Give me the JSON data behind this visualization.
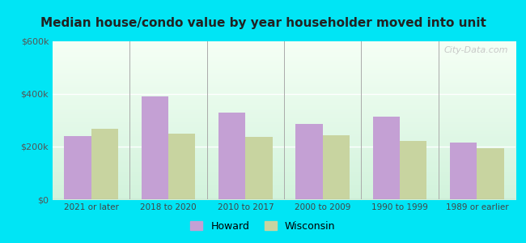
{
  "title": "Median house/condo value by year householder moved into unit",
  "categories": [
    "2021 or later",
    "2018 to 2020",
    "2010 to 2017",
    "2000 to 2009",
    "1990 to 1999",
    "1989 or earlier"
  ],
  "howard_values": [
    240000,
    390000,
    330000,
    285000,
    315000,
    215000
  ],
  "wisconsin_values": [
    268000,
    248000,
    238000,
    242000,
    222000,
    193000
  ],
  "howard_color": "#c4a0d4",
  "wisconsin_color": "#c8d4a0",
  "ylim": [
    0,
    600000
  ],
  "yticks": [
    0,
    200000,
    400000,
    600000
  ],
  "ytick_labels": [
    "$0",
    "$200k",
    "$400k",
    "$600k"
  ],
  "bar_width": 0.35,
  "outer_bg": "#00e5f5",
  "legend_howard": "Howard",
  "legend_wisconsin": "Wisconsin",
  "watermark": "City-Data.com"
}
